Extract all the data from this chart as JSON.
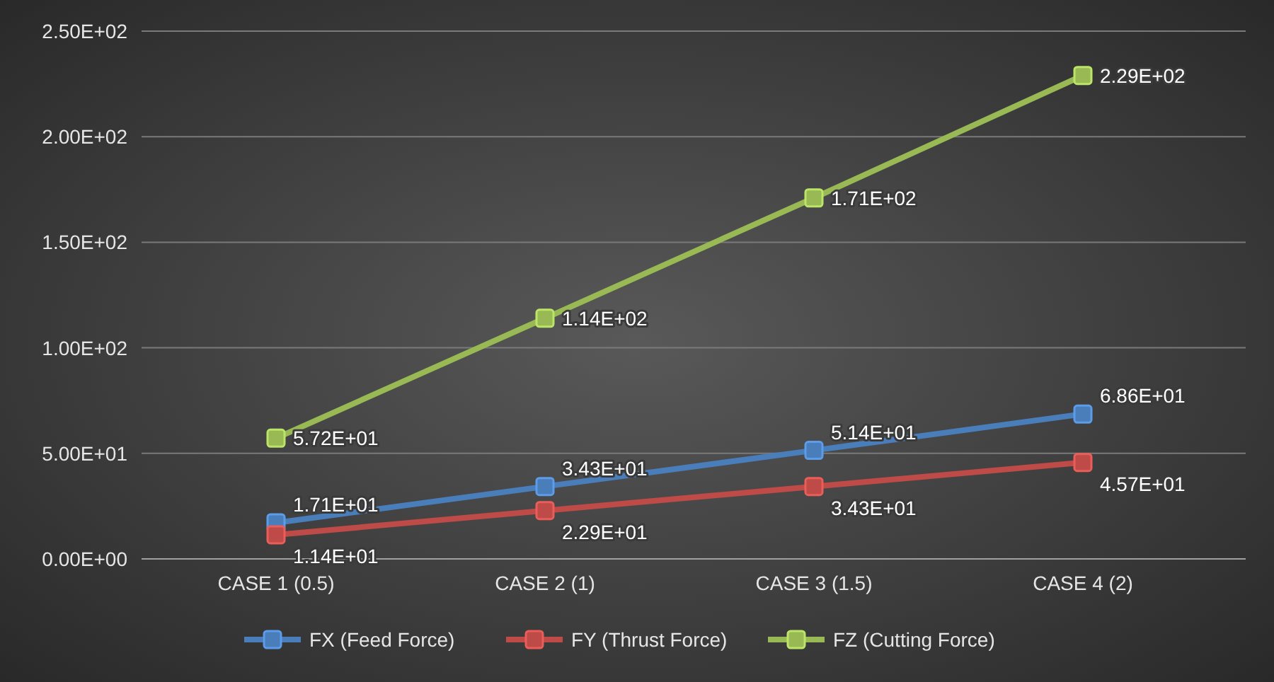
{
  "chart_data": {
    "type": "line",
    "categories": [
      "CASE 1 (0.5)",
      "CASE 2 (1)",
      "CASE 3 (1.5)",
      "CASE 4 (2)"
    ],
    "series": [
      {
        "name": "FX (Feed Force)",
        "color": "#4a7ebb",
        "values": [
          17.1,
          34.3,
          51.4,
          68.6
        ],
        "value_labels": [
          "1.71E+01",
          "3.43E+01",
          "5.14E+01",
          "6.86E+01"
        ]
      },
      {
        "name": "FY (Thrust Force)",
        "color": "#be4b48",
        "values": [
          11.4,
          22.9,
          34.3,
          45.7
        ],
        "value_labels": [
          "1.14E+01",
          "2.29E+01",
          "3.43E+01",
          "4.57E+01"
        ]
      },
      {
        "name": "FZ (Cutting Force)",
        "color": "#98b954",
        "values": [
          57.2,
          114,
          171,
          229
        ],
        "value_labels": [
          "5.72E+01",
          "1.14E+02",
          "1.71E+02",
          "2.29E+02"
        ]
      }
    ],
    "ylim": [
      0,
      250
    ],
    "yticks": [
      {
        "value": 0,
        "label": "0.00E+00"
      },
      {
        "value": 50,
        "label": "5.00E+01"
      },
      {
        "value": 100,
        "label": "1.00E+02"
      },
      {
        "value": 150,
        "label": "1.50E+02"
      },
      {
        "value": 200,
        "label": "2.00E+02"
      },
      {
        "value": 250,
        "label": "2.50E+02"
      }
    ],
    "grid": "y",
    "legend": "bottom",
    "marker": "square",
    "line_style": "solid"
  }
}
